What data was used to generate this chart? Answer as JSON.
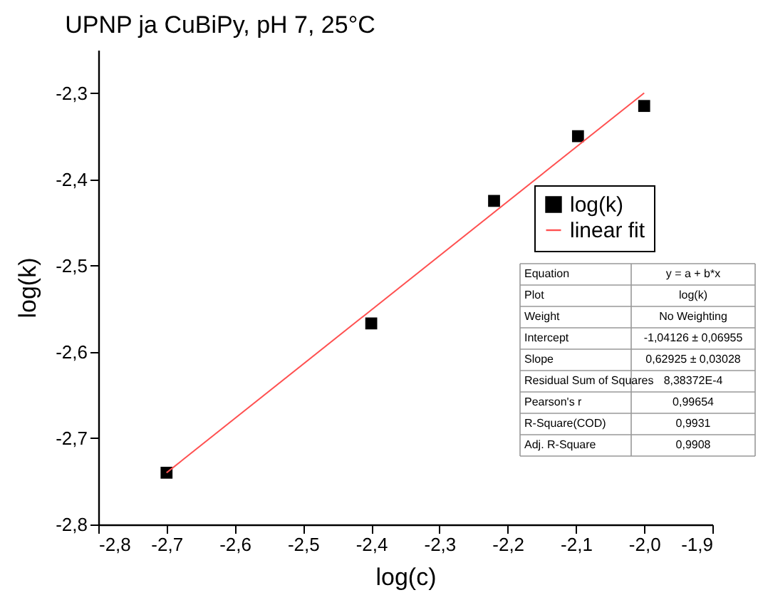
{
  "chart_data": {
    "type": "scatter",
    "title": "UPNP ja CuBiPy, pH 7, 25°C",
    "xlabel": "log(c)",
    "ylabel": "log(k)",
    "xlim": [
      -2.8,
      -1.9
    ],
    "xticks": [
      {
        "value": -2.8,
        "label": "-2,8"
      },
      {
        "value": -2.7,
        "label": "-2,7"
      },
      {
        "value": -2.6,
        "label": "-2,6"
      },
      {
        "value": -2.5,
        "label": "-2,5"
      },
      {
        "value": -2.4,
        "label": "-2,4"
      },
      {
        "value": -2.3,
        "label": "-2,3"
      },
      {
        "value": -2.2,
        "label": "-2,2"
      },
      {
        "value": -2.1,
        "label": "-2,1"
      },
      {
        "value": -2.0,
        "label": "-2,0"
      },
      {
        "value": -1.9,
        "label": "-1,9"
      }
    ],
    "ylim": [
      -2.8,
      -2.25
    ],
    "yticks": [
      {
        "value": -2.8,
        "label": "-2,8"
      },
      {
        "value": -2.7,
        "label": "-2,7"
      },
      {
        "value": -2.6,
        "label": "-2,6"
      },
      {
        "value": -2.5,
        "label": "-2,5"
      },
      {
        "value": -2.4,
        "label": "-2,4"
      },
      {
        "value": -2.3,
        "label": "-2,3"
      }
    ],
    "series": [
      {
        "name": "log(k)",
        "color": "#000000",
        "marker": "square",
        "x": [
          -2.7,
          -2.4,
          -2.22,
          -2.097,
          -2.0
        ],
        "values": [
          -2.74,
          -2.567,
          -2.425,
          -2.35,
          -2.315
        ]
      },
      {
        "name": "linear fit",
        "type": "line",
        "color": "#ff5050",
        "x": [
          -2.7,
          -2.0
        ],
        "values": [
          -2.74,
          -2.3
        ]
      }
    ],
    "legend": "right",
    "grid": false,
    "annotations": [
      "Equation",
      "y = a + b*x",
      "Plot",
      "log(k)",
      "Weight",
      "No Weighting",
      "Intercept",
      "-1,04126 ± 0,06955",
      "Slope",
      "0,62925 ± 0,03028",
      "Residual Sum of Squares",
      "8,38372E-4",
      "Pearson's r",
      "0,99654",
      "R-Square(COD)",
      "0,9931",
      "Adj. R-Square",
      "0,9908"
    ]
  }
}
